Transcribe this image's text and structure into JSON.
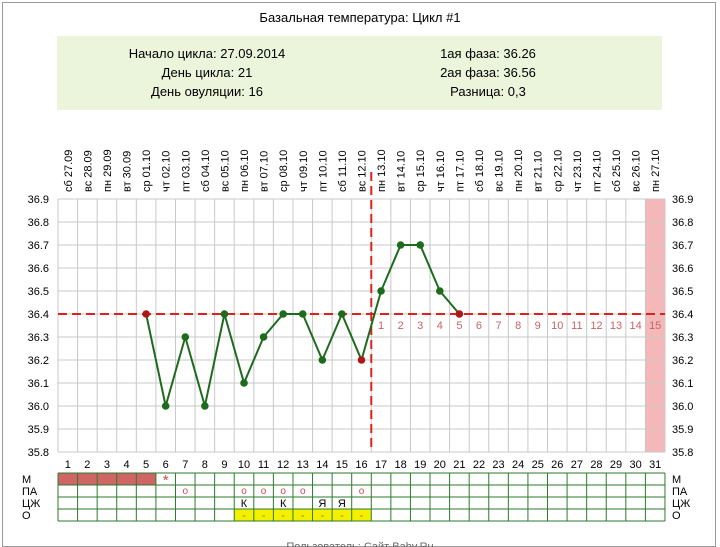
{
  "title": "Базальная температура: Цикл #1",
  "summary": {
    "cycle_start": "Начало цикла: 27.09.2014",
    "cycle_day": "День цикла: 21",
    "ovulation_day": "День овуляции: 16",
    "phase1": "1ая фаза: 36.26",
    "phase2": "2ая фаза: 36.56",
    "difference": "Разница: 0,3"
  },
  "footer_text": "Пользователь: Сайт Baby.Ru",
  "colors": {
    "grid": "#c8c8c8",
    "line": "#1e6b1e",
    "marker": "#1e6b1e",
    "dashed": "#e0201a",
    "highlight_col": "#f4b8b8",
    "phase_numbers": "#c86464",
    "menses_bar": "#cf6565",
    "table_border": "#2d7a2d",
    "discharge_fill": "#f3f000"
  },
  "chart_data": {
    "type": "line",
    "title": "Базальная температура: Цикл #1",
    "x_days": [
      1,
      2,
      3,
      4,
      5,
      6,
      7,
      8,
      9,
      10,
      11,
      12,
      13,
      14,
      15,
      16,
      17,
      18,
      19,
      20,
      21,
      22,
      23,
      24,
      25,
      26,
      27,
      28,
      29,
      30,
      31
    ],
    "dates": [
      "сб 27.09",
      "вс 28.09",
      "пн 29.09",
      "вт 30.09",
      "ср 01.10",
      "чт 02.10",
      "пт 03.10",
      "сб 04.10",
      "вс 05.10",
      "пн 06.10",
      "вт 07.10",
      "ср 08.10",
      "чт 09.10",
      "пт 10.10",
      "сб 11.10",
      "вс 12.10",
      "пн 13.10",
      "вт 14.10",
      "ср 15.10",
      "чт 16.10",
      "пт 17.10",
      "сб 18.10",
      "вс 19.10",
      "пн 20.10",
      "вт 21.10",
      "ср 22.10",
      "чт 23.10",
      "пт 24.10",
      "сб 25.10",
      "вс 26.10",
      "пн 27.10"
    ],
    "series": [
      {
        "points": [
          {
            "day": 5,
            "temp": 36.4
          },
          {
            "day": 6,
            "temp": 36.0
          },
          {
            "day": 7,
            "temp": 36.3
          },
          {
            "day": 8,
            "temp": 36.0
          },
          {
            "day": 9,
            "temp": 36.4
          },
          {
            "day": 10,
            "temp": 36.1
          },
          {
            "day": 11,
            "temp": 36.3
          },
          {
            "day": 12,
            "temp": 36.4
          },
          {
            "day": 13,
            "temp": 36.4
          },
          {
            "day": 14,
            "temp": 36.2
          },
          {
            "day": 15,
            "temp": 36.4
          },
          {
            "day": 16,
            "temp": 36.2
          },
          {
            "day": 17,
            "temp": 36.5
          },
          {
            "day": 18,
            "temp": 36.7
          },
          {
            "day": 19,
            "temp": 36.7
          },
          {
            "day": 20,
            "temp": 36.5
          },
          {
            "day": 21,
            "temp": 36.4
          }
        ]
      }
    ],
    "red_markers": [
      5,
      16,
      21
    ],
    "y_ticks": [
      "35.8",
      "35.9",
      "36.0",
      "36.1",
      "36.2",
      "36.3",
      "36.4",
      "36.5",
      "36.6",
      "36.7",
      "36.8",
      "36.9"
    ],
    "ylim": [
      35.8,
      36.9
    ],
    "coverline_temp": 36.4,
    "ovulation_day": 16,
    "highlight_day": 31,
    "phase2_numbers": [
      "1",
      "2",
      "3",
      "4",
      "5",
      "6",
      "7",
      "8",
      "9",
      "10",
      "11",
      "12",
      "13",
      "14",
      "15"
    ],
    "grid": true
  },
  "bottom_table": {
    "row_labels": [
      "М",
      "ПА",
      "ЦЖ",
      "О"
    ],
    "menses_days": [
      1,
      2,
      3,
      4,
      5
    ],
    "star_day": 6,
    "star_symbol": "*",
    "pa_days": [
      7,
      10,
      11,
      12,
      13,
      16
    ],
    "pa_symbol": "o",
    "cj_marks": [
      {
        "day": 10,
        "text": "К"
      },
      {
        "day": 12,
        "text": "К"
      },
      {
        "day": 14,
        "text": "Я"
      },
      {
        "day": 15,
        "text": "Я"
      }
    ],
    "o_days": [
      10,
      11,
      12,
      13,
      14,
      15,
      16
    ],
    "o_symbol": "-"
  }
}
